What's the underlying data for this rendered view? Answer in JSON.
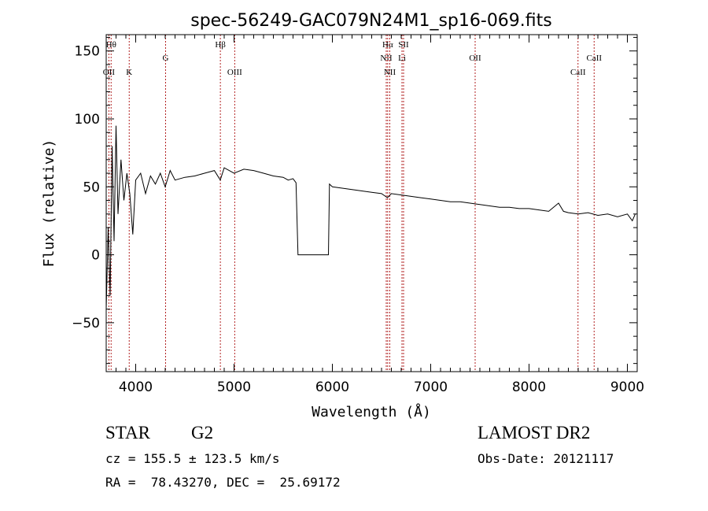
{
  "chart_data": {
    "type": "line",
    "title": "spec-56249-GAC079N24M1_sp16-069.fits",
    "xlabel": "Wavelength (Å)",
    "ylabel": "Flux (relative)",
    "xlim": [
      3700,
      9100
    ],
    "ylim": [
      -86,
      162
    ],
    "x_ticks": [
      4000,
      5000,
      6000,
      7000,
      8000,
      9000
    ],
    "y_ticks": [
      -50,
      0,
      50,
      100,
      150
    ],
    "grid": false,
    "series": [
      {
        "color": "#000000",
        "x": [
          3700,
          3720,
          3740,
          3760,
          3780,
          3800,
          3820,
          3850,
          3880,
          3910,
          3940,
          3970,
          4000,
          4050,
          4100,
          4150,
          4200,
          4250,
          4300,
          4350,
          4400,
          4500,
          4600,
          4700,
          4800,
          4860,
          4900,
          5000,
          5100,
          5200,
          5300,
          5400,
          5500,
          5550,
          5600,
          5630,
          5650,
          5660,
          5950,
          5960,
          5970,
          6000,
          6100,
          6200,
          6300,
          6400,
          6500,
          6560,
          6600,
          6700,
          6800,
          6900,
          7000,
          7100,
          7200,
          7300,
          7400,
          7500,
          7600,
          7700,
          7800,
          7900,
          8000,
          8100,
          8200,
          8300,
          8350,
          8400,
          8500,
          8600,
          8700,
          8800,
          8900,
          9000,
          9050,
          9080
        ],
        "y": [
          -40,
          20,
          -30,
          80,
          10,
          95,
          30,
          70,
          40,
          60,
          45,
          15,
          55,
          60,
          45,
          58,
          52,
          60,
          50,
          62,
          55,
          57,
          58,
          60,
          62,
          55,
          64,
          60,
          63,
          62,
          60,
          58,
          57,
          55,
          56,
          53,
          0,
          0,
          0,
          0,
          52,
          50,
          49,
          48,
          47,
          46,
          45,
          42,
          45,
          44,
          43,
          42,
          41,
          40,
          39,
          39,
          38,
          37,
          36,
          35,
          35,
          34,
          34,
          33,
          32,
          38,
          32,
          31,
          30,
          31,
          29,
          30,
          28,
          30,
          25,
          30
        ]
      }
    ],
    "lines": [
      {
        "x": 3750,
        "label": "Hθ",
        "row": 1
      },
      {
        "x": 3727,
        "label": "OII",
        "row": 3
      },
      {
        "x": 3934,
        "label": "K",
        "row": 3
      },
      {
        "x": 4304,
        "label": "G",
        "row": 2
      },
      {
        "x": 4861,
        "label": "Hβ",
        "row": 1
      },
      {
        "x": 5007,
        "label": "OIII",
        "row": 3
      },
      {
        "x": 6548,
        "label": "NII",
        "row": 2
      },
      {
        "x": 6563,
        "label": "Hα",
        "row": 1
      },
      {
        "x": 6584,
        "label": "NII",
        "row": 3
      },
      {
        "x": 6708,
        "label": "Li",
        "row": 2
      },
      {
        "x": 6724,
        "label": "SII",
        "row": 1
      },
      {
        "x": 7452,
        "label": "OII",
        "row": 2
      },
      {
        "x": 8498,
        "label": "CaII",
        "row": 3
      },
      {
        "x": 8662,
        "label": "CaII",
        "row": 2
      }
    ]
  },
  "info": {
    "object_class": "STAR",
    "subclass": "G2",
    "survey": "LAMOST DR2",
    "velocity": "cz = 155.5 ± 123.5 km/s",
    "obs_date": "Obs-Date: 20121117",
    "coords": "RA =  78.43270, DEC =  25.69172"
  },
  "colors": {
    "spectrum": "#000000",
    "line_markers": "#b22222",
    "axes": "#000000"
  }
}
